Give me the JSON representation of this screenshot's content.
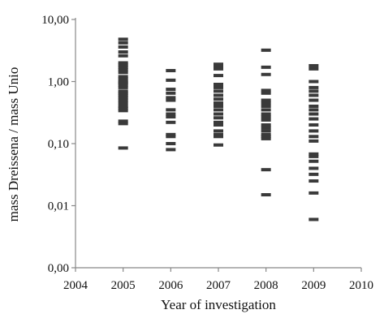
{
  "chart_data": {
    "type": "scatter",
    "title": "",
    "xlabel": "Year of investigation",
    "ylabel": "mass Dreissena / mass Unio",
    "xlim": [
      2004,
      2010
    ],
    "ylim": [
      0.001,
      10
    ],
    "y_scale": "log",
    "x_ticks": [
      {
        "value": 2004,
        "label": "2004"
      },
      {
        "value": 2005,
        "label": "2005"
      },
      {
        "value": 2006,
        "label": "2006"
      },
      {
        "value": 2007,
        "label": "2007"
      },
      {
        "value": 2008,
        "label": "2008"
      },
      {
        "value": 2009,
        "label": "2009"
      },
      {
        "value": 2010,
        "label": "2010"
      }
    ],
    "y_ticks": [
      {
        "value": 0.001,
        "label": "0,00"
      },
      {
        "value": 0.01,
        "label": "0,01"
      },
      {
        "value": 0.1,
        "label": "0,10"
      },
      {
        "value": 1,
        "label": "1,00"
      },
      {
        "value": 10,
        "label": "10,00"
      }
    ],
    "grid": false,
    "marker": "horizontal-dash",
    "marker_color": "#3a3a3a",
    "series": [
      {
        "x": 2005,
        "values": [
          4.8,
          4.2,
          3.6,
          3.0,
          2.6,
          2.0,
          1.85,
          1.7,
          1.55,
          1.4,
          1.2,
          1.1,
          1.0,
          0.95,
          0.88,
          0.8,
          0.7,
          0.65,
          0.6,
          0.55,
          0.5,
          0.45,
          0.4,
          0.37,
          0.34,
          0.23,
          0.21,
          0.085
        ]
      },
      {
        "x": 2006,
        "values": [
          1.5,
          1.05,
          0.75,
          0.65,
          0.55,
          0.5,
          0.35,
          0.3,
          0.27,
          0.22,
          0.14,
          0.13,
          0.1,
          0.08
        ]
      },
      {
        "x": 2007,
        "values": [
          1.9,
          1.75,
          1.6,
          1.25,
          0.9,
          0.8,
          0.7,
          0.6,
          0.52,
          0.45,
          0.4,
          0.35,
          0.3,
          0.26,
          0.22,
          0.2,
          0.16,
          0.14,
          0.13,
          0.095
        ]
      },
      {
        "x": 2008,
        "values": [
          3.2,
          1.7,
          1.3,
          0.72,
          0.65,
          0.5,
          0.45,
          0.4,
          0.35,
          0.3,
          0.27,
          0.24,
          0.2,
          0.18,
          0.16,
          0.14,
          0.13,
          0.12,
          0.038,
          0.015
        ]
      },
      {
        "x": 2009,
        "values": [
          1.8,
          1.6,
          1.0,
          0.8,
          0.7,
          0.6,
          0.5,
          0.4,
          0.35,
          0.3,
          0.25,
          0.2,
          0.16,
          0.13,
          0.11,
          0.068,
          0.062,
          0.052,
          0.04,
          0.032,
          0.025,
          0.016,
          0.006
        ]
      }
    ]
  }
}
